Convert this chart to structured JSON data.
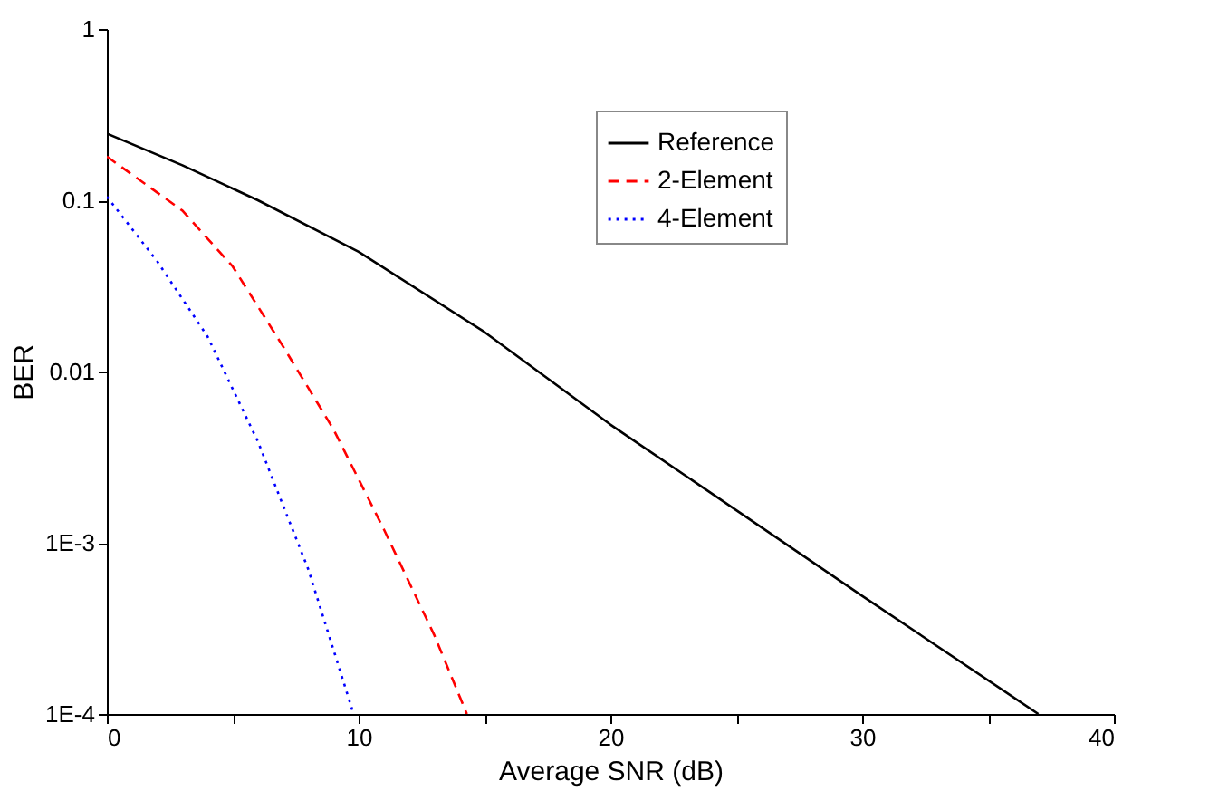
{
  "chart_data": {
    "type": "line",
    "xlabel": "Average SNR (dB)",
    "ylabel": "BER",
    "log": "y",
    "grid": false,
    "legend": "top right",
    "xlim": [
      0,
      40
    ],
    "xticks": [
      0,
      {
        "value": 5,
        "label": null
      },
      10,
      {
        "value": 15,
        "label": null
      },
      20,
      {
        "value": 25,
        "label": null
      },
      30,
      {
        "value": 35,
        "label": null
      },
      40
    ],
    "ylim": [
      0.0001,
      1
    ],
    "yticks": [
      {
        "value": 0.0001,
        "label": "1E-4"
      },
      {
        "value": 0.001,
        "label": "1E-3"
      },
      0.01,
      0.1,
      1
    ],
    "series": [
      {
        "name": "Reference",
        "color": "#000000",
        "line_style": "solid",
        "x": [
          0,
          3,
          6,
          10,
          15,
          20,
          30,
          37
        ],
        "values": [
          0.245,
          0.16,
          0.1,
          0.05,
          0.017,
          0.0049,
          0.00049,
          0.0001
        ]
      },
      {
        "name": "2-Element",
        "color": "#ff0000",
        "line_style": "dashed",
        "x": [
          0,
          3,
          5,
          7,
          9,
          11,
          13,
          14.3
        ],
        "values": [
          0.18,
          0.087,
          0.041,
          0.014,
          0.0046,
          0.0012,
          0.00029,
          0.0001
        ]
      },
      {
        "name": "4-Element",
        "color": "#0000ff",
        "line_style": "dotted",
        "x": [
          0,
          2,
          4,
          6,
          8,
          9.8
        ],
        "values": [
          0.105,
          0.044,
          0.016,
          0.0039,
          0.0007,
          0.0001
        ]
      }
    ]
  }
}
